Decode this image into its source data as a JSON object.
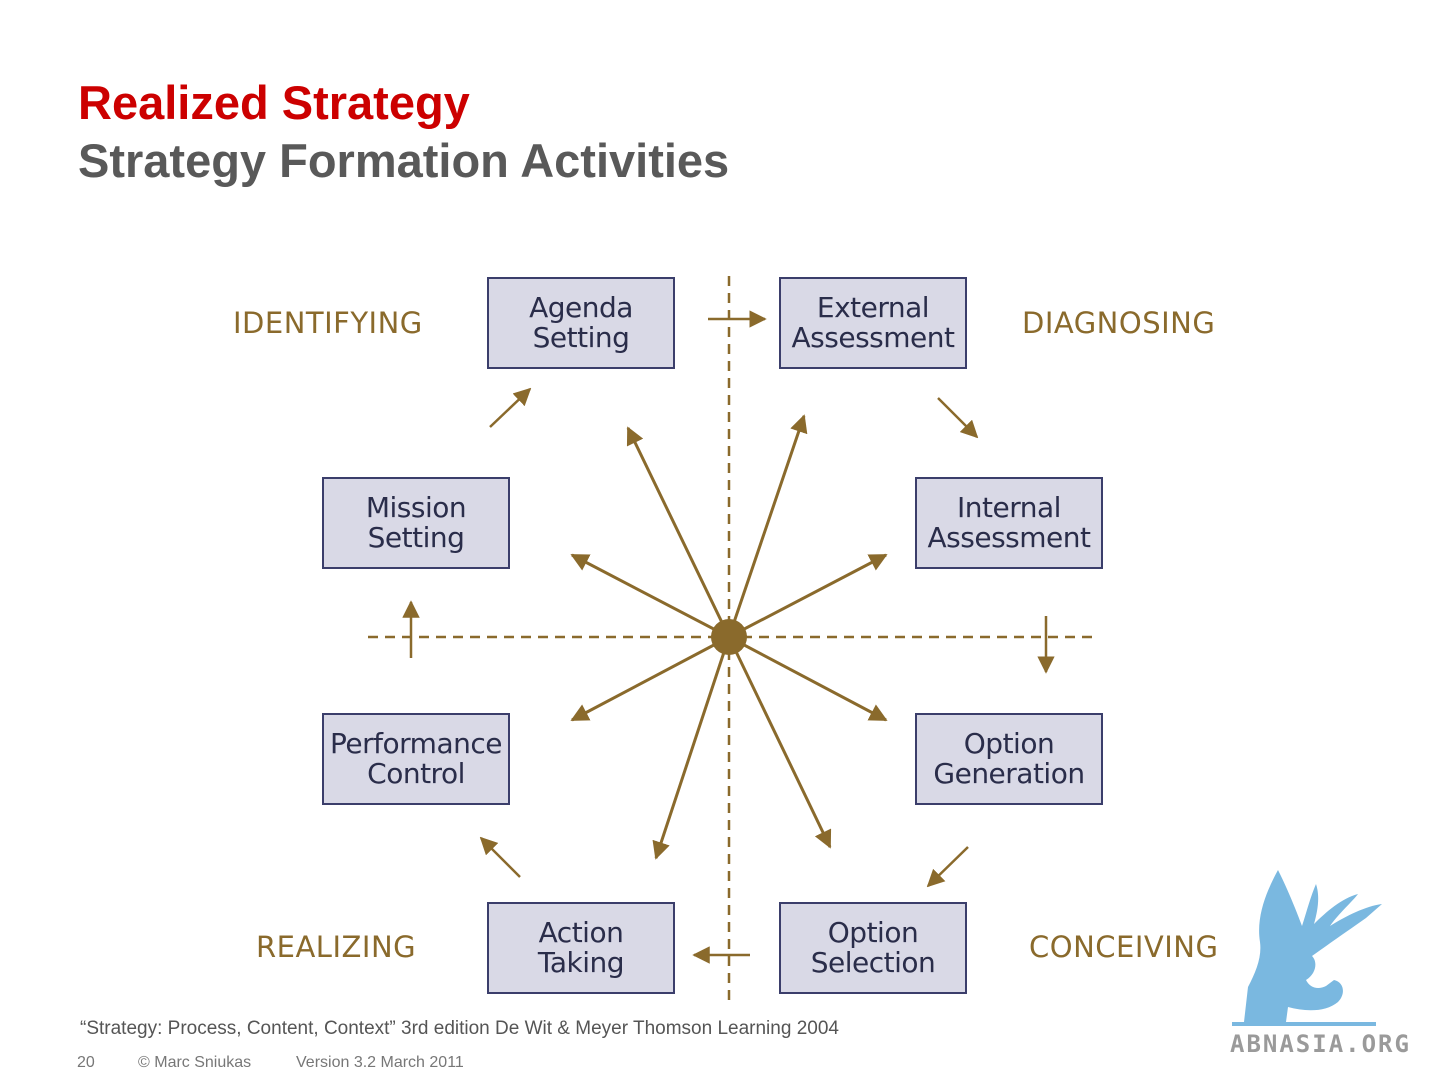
{
  "title": "Realized Strategy",
  "subtitle": "Strategy Formation Activities",
  "quadrants": {
    "identifying": "IDENTIFYING",
    "diagnosing": "DIAGNOSING",
    "realizing": "REALIZING",
    "conceiving": "CONCEIVING"
  },
  "activities": {
    "agenda_setting": [
      "Agenda",
      "Setting"
    ],
    "external_assessment": [
      "External",
      "Assessment"
    ],
    "internal_assessment": [
      "Internal",
      "Assessment"
    ],
    "option_generation": [
      "Option",
      "Generation"
    ],
    "option_selection": [
      "Option",
      "Selection"
    ],
    "action_taking": [
      "Action",
      "Taking"
    ],
    "performance_control": [
      "Performance",
      "Control"
    ],
    "mission_setting": [
      "Mission",
      "Setting"
    ]
  },
  "citation": "“Strategy: Process, Content, Context” 3rd edition De Wit & Meyer Thomson Learning 2004",
  "footer": {
    "page": "20",
    "author": "© Marc Sniukas",
    "version": "Version 3.2 March 2011"
  },
  "logo": {
    "text": "ABNASIA.ORG",
    "icon": "griffin-icon"
  },
  "colors": {
    "title": "#cc0000",
    "subtitle": "#595959",
    "box_fill": "#d9d9e6",
    "box_border": "#3b3e6b",
    "arrow": "#8a6a2c",
    "logo_blue": "#7ab8e0"
  }
}
